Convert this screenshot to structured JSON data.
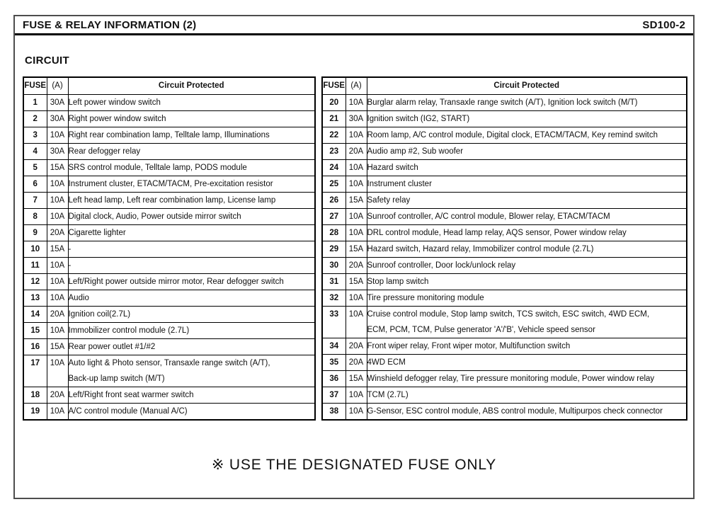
{
  "header": {
    "title": "FUSE & RELAY INFORMATION (2)",
    "code": "SD100-2"
  },
  "section_heading": "CIRCUIT",
  "footer_note": "※ USE THE DESIGNATED FUSE ONLY",
  "tables": [
    {
      "headers": [
        "FUSE",
        "(A)",
        "Circuit Protected"
      ],
      "rows": [
        {
          "fuse": "1",
          "amp": "30A",
          "circuit": [
            "Left power window switch"
          ]
        },
        {
          "fuse": "2",
          "amp": "30A",
          "circuit": [
            "Right power window switch"
          ]
        },
        {
          "fuse": "3",
          "amp": "10A",
          "circuit": [
            "Right rear combination lamp, Telltale lamp, Illuminations"
          ]
        },
        {
          "fuse": "4",
          "amp": "30A",
          "circuit": [
            "Rear defogger relay"
          ]
        },
        {
          "fuse": "5",
          "amp": "15A",
          "circuit": [
            "SRS control module, Telltale lamp, PODS module"
          ]
        },
        {
          "fuse": "6",
          "amp": "10A",
          "circuit": [
            "Instrument cluster, ETACM/TACM, Pre-excitation resistor"
          ]
        },
        {
          "fuse": "7",
          "amp": "10A",
          "circuit": [
            "Left head lamp, Left rear combination lamp, License lamp"
          ]
        },
        {
          "fuse": "8",
          "amp": "10A",
          "circuit": [
            "Digital clock, Audio, Power outside mirror switch"
          ]
        },
        {
          "fuse": "9",
          "amp": "20A",
          "circuit": [
            "Cigarette lighter"
          ]
        },
        {
          "fuse": "10",
          "amp": "15A",
          "circuit": [
            "-"
          ]
        },
        {
          "fuse": "11",
          "amp": "10A",
          "circuit": [
            "-"
          ]
        },
        {
          "fuse": "12",
          "amp": "10A",
          "circuit": [
            "Left/Right power outside mirror motor, Rear defogger switch"
          ]
        },
        {
          "fuse": "13",
          "amp": "10A",
          "circuit": [
            "Audio"
          ]
        },
        {
          "fuse": "14",
          "amp": "20A",
          "circuit": [
            "Ignition coil(2.7L)"
          ]
        },
        {
          "fuse": "15",
          "amp": "10A",
          "circuit": [
            "Immobilizer control module (2.7L)"
          ]
        },
        {
          "fuse": "16",
          "amp": "15A",
          "circuit": [
            "Rear power outlet #1/#2"
          ]
        },
        {
          "fuse": "17",
          "amp": "10A",
          "circuit": [
            "Auto light & Photo sensor, Transaxle range switch (A/T),",
            "Back-up lamp switch (M/T)"
          ]
        },
        {
          "fuse": "18",
          "amp": "20A",
          "circuit": [
            "Left/Right front seat warmer switch"
          ]
        },
        {
          "fuse": "19",
          "amp": "10A",
          "circuit": [
            "A/C control module (Manual A/C)"
          ]
        }
      ]
    },
    {
      "headers": [
        "FUSE",
        "(A)",
        "Circuit Protected"
      ],
      "rows": [
        {
          "fuse": "20",
          "amp": "10A",
          "circuit": [
            "Burglar alarm relay, Transaxle range switch (A/T), Ignition lock switch (M/T)"
          ]
        },
        {
          "fuse": "21",
          "amp": "30A",
          "circuit": [
            "Ignition switch (IG2, START)"
          ]
        },
        {
          "fuse": "22",
          "amp": "10A",
          "circuit": [
            "Room lamp, A/C control module, Digital clock, ETACM/TACM, Key remind switch"
          ]
        },
        {
          "fuse": "23",
          "amp": "20A",
          "circuit": [
            "Audio amp #2, Sub woofer"
          ]
        },
        {
          "fuse": "24",
          "amp": "10A",
          "circuit": [
            "Hazard switch"
          ]
        },
        {
          "fuse": "25",
          "amp": "10A",
          "circuit": [
            "Instrument cluster"
          ]
        },
        {
          "fuse": "26",
          "amp": "15A",
          "circuit": [
            "Safety relay"
          ]
        },
        {
          "fuse": "27",
          "amp": "10A",
          "circuit": [
            "Sunroof controller, A/C control module, Blower relay, ETACM/TACM"
          ]
        },
        {
          "fuse": "28",
          "amp": "10A",
          "circuit": [
            "DRL control module, Head lamp relay, AQS sensor, Power window relay"
          ]
        },
        {
          "fuse": "29",
          "amp": "15A",
          "circuit": [
            "Hazard switch, Hazard relay, Immobilizer control module (2.7L)"
          ]
        },
        {
          "fuse": "30",
          "amp": "20A",
          "circuit": [
            "Sunroof controller, Door lock/unlock relay"
          ]
        },
        {
          "fuse": "31",
          "amp": "15A",
          "circuit": [
            "Stop lamp switch"
          ]
        },
        {
          "fuse": "32",
          "amp": "10A",
          "circuit": [
            "Tire pressure monitoring module"
          ]
        },
        {
          "fuse": "33",
          "amp": "10A",
          "circuit": [
            "Cruise control module, Stop lamp switch, TCS switch, ESC switch, 4WD ECM,",
            "ECM, PCM, TCM, Pulse generator 'A'/'B', Vehicle speed sensor"
          ]
        },
        {
          "fuse": "34",
          "amp": "20A",
          "circuit": [
            "Front wiper relay, Front wiper motor, Multifunction switch"
          ]
        },
        {
          "fuse": "35",
          "amp": "20A",
          "circuit": [
            "4WD ECM"
          ]
        },
        {
          "fuse": "36",
          "amp": "15A",
          "circuit": [
            "Winshield defogger relay, Tire pressure monitoring module, Power window relay"
          ]
        },
        {
          "fuse": "37",
          "amp": "10A",
          "circuit": [
            "TCM (2.7L)"
          ]
        },
        {
          "fuse": "38",
          "amp": "10A",
          "circuit": [
            "G-Sensor, ESC control module, ABS control module, Multipurpos check connector"
          ]
        }
      ]
    }
  ]
}
